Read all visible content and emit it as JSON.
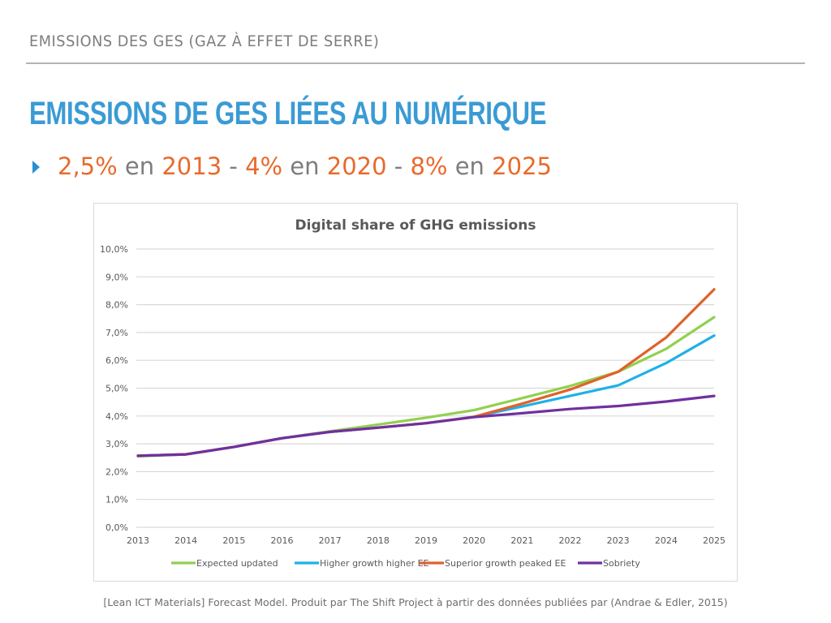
{
  "header": {
    "section_title": "EMISSIONS DES GES (GAZ À EFFET DE SERRE)",
    "slide_title": "EMISSIONS DE GES LIÉES AU NUMÉRIQUE",
    "bullet": {
      "parts": [
        {
          "text": "2,5%",
          "style": "highlight"
        },
        {
          "text": " en ",
          "style": "normal"
        },
        {
          "text": "2013",
          "style": "highlight"
        },
        {
          "text": " - ",
          "style": "normal"
        },
        {
          "text": "4%",
          "style": "highlight"
        },
        {
          "text": " en ",
          "style": "normal"
        },
        {
          "text": "2020",
          "style": "highlight"
        },
        {
          "text": " - ",
          "style": "normal"
        },
        {
          "text": "8%",
          "style": "highlight"
        },
        {
          "text": " en ",
          "style": "normal"
        },
        {
          "text": "2025",
          "style": "highlight"
        }
      ]
    }
  },
  "colors": {
    "title_blue": "#3a9bd4",
    "highlight_orange": "#e86a2c",
    "text_gray": "#7d7d7d"
  },
  "caption": "[Lean ICT Materials] Forecast Model. Produit par The Shift Project à partir des données publiées par (Andrae & Edler, 2015)",
  "chart_data": {
    "type": "line",
    "title": "Digital share of GHG emissions",
    "xlabel": "",
    "ylabel": "",
    "x": [
      "2013",
      "2014",
      "2015",
      "2016",
      "2017",
      "2018",
      "2019",
      "2020",
      "2021",
      "2022",
      "2023",
      "2024",
      "2025"
    ],
    "ylim": [
      0,
      10
    ],
    "yticks": [
      "0,0%",
      "1,0%",
      "2,0%",
      "3,0%",
      "4,0%",
      "5,0%",
      "6,0%",
      "7,0%",
      "8,0%",
      "9,0%",
      "10,0%"
    ],
    "grid": true,
    "legend_position": "bottom",
    "series": [
      {
        "name": "Expected updated",
        "color": "#92d050",
        "values": [
          2.55,
          2.62,
          2.89,
          3.2,
          3.45,
          3.69,
          3.94,
          4.21,
          4.64,
          5.08,
          5.59,
          6.41,
          7.55
        ]
      },
      {
        "name": "Higher growth higher EE",
        "color": "#1fb1e6",
        "values": [
          2.57,
          2.62,
          2.89,
          3.2,
          3.43,
          3.58,
          3.74,
          3.97,
          4.34,
          4.72,
          5.1,
          5.9,
          6.89
        ]
      },
      {
        "name": "Superior growth peaked EE",
        "color": "#e0622a",
        "values": [
          2.57,
          2.62,
          2.89,
          3.2,
          3.43,
          3.58,
          3.74,
          3.97,
          4.44,
          4.95,
          5.59,
          6.82,
          8.55
        ]
      },
      {
        "name": "Sobriety",
        "color": "#7030a0",
        "values": [
          2.57,
          2.62,
          2.89,
          3.2,
          3.43,
          3.58,
          3.74,
          3.96,
          4.1,
          4.25,
          4.36,
          4.52,
          4.72
        ]
      }
    ]
  }
}
